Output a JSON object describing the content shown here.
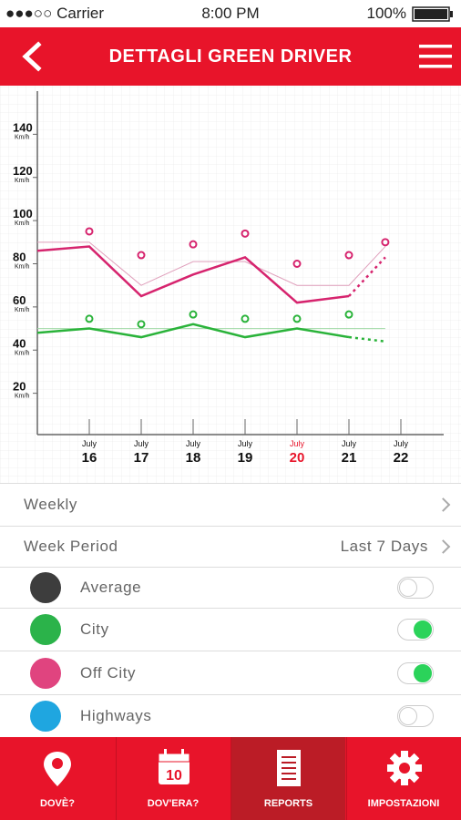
{
  "status_bar": {
    "carrier": "●●●○○ Carrier",
    "time": "8:00 PM",
    "battery": "100%"
  },
  "header": {
    "title": "DETTAGLI GREEN DRIVER"
  },
  "chart_data": {
    "type": "line",
    "y_unit": "Km/h",
    "x_month": "July",
    "xlim": [
      15,
      22.8
    ],
    "xticks": [
      16,
      17,
      18,
      19,
      20,
      21,
      22
    ],
    "highlight_x": 20,
    "highlight_color": "#e8142a",
    "ylim": [
      0,
      160
    ],
    "yticks": [
      20,
      40,
      60,
      80,
      100,
      120,
      140
    ],
    "grid": true,
    "series": [
      {
        "color": "#e0a0bc",
        "style": "thin",
        "x": [
          15,
          16,
          17,
          18,
          19,
          20,
          21,
          21.7
        ],
        "values": [
          90,
          90,
          70,
          81,
          81,
          70,
          70,
          88
        ]
      },
      {
        "color": "#d6246e",
        "style": "solid",
        "x": [
          15,
          16,
          17,
          18,
          19,
          20,
          21
        ],
        "values": [
          86,
          88,
          65,
          75,
          83,
          62,
          65
        ]
      },
      {
        "color": "#d6246e",
        "style": "dotted",
        "x": [
          21,
          21.7
        ],
        "values": [
          65,
          83
        ]
      },
      {
        "color": "#d6246e",
        "style": "markers",
        "x": [
          16,
          17,
          18,
          19,
          20,
          21,
          21.7
        ],
        "values": [
          95,
          84,
          89,
          94,
          80,
          84,
          90
        ]
      },
      {
        "color": "#9fd9a4",
        "style": "thin",
        "x": [
          15,
          21.7
        ],
        "values": [
          50,
          50
        ]
      },
      {
        "color": "#2ab33a",
        "style": "solid",
        "x": [
          15,
          16,
          17,
          18,
          19,
          20,
          21
        ],
        "values": [
          48,
          50,
          46,
          52,
          46,
          50,
          46
        ]
      },
      {
        "color": "#2ab33a",
        "style": "dotted",
        "x": [
          21,
          21.7
        ],
        "values": [
          46,
          44
        ]
      },
      {
        "color": "#2ab33a",
        "style": "markers",
        "x": [
          16,
          17,
          18,
          19,
          20,
          21
        ],
        "values": [
          54.5,
          52,
          56.5,
          54.5,
          54.5,
          56.5
        ]
      }
    ]
  },
  "settings": [
    {
      "label": "Weekly",
      "value": null
    },
    {
      "label": "Week Period",
      "value": "Last 7 Days"
    }
  ],
  "legend": [
    {
      "label": "Average",
      "color": "#3d3d3d",
      "on": false
    },
    {
      "label": "City",
      "color": "#2bb34a",
      "on": true
    },
    {
      "label": "Off City",
      "color": "#e0447f",
      "on": true
    },
    {
      "label": "Highways",
      "color": "#1fa6e0",
      "on": false
    }
  ],
  "tabs": [
    {
      "label": "DOVÈ?",
      "active": false
    },
    {
      "label": "DOV'ERA?",
      "active": false,
      "badge": "10"
    },
    {
      "label": "REPORTS",
      "active": true
    },
    {
      "label": "IMPOSTAZIONI",
      "active": false
    }
  ]
}
